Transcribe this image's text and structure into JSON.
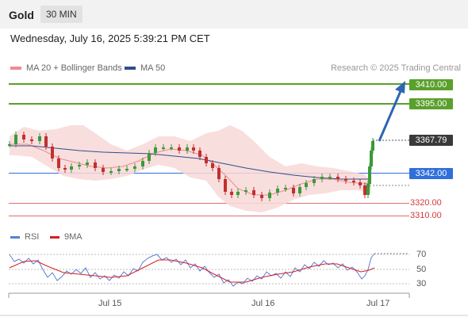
{
  "header": {
    "symbol": "Gold",
    "timeframe": "30 MIN"
  },
  "datetime": "Wednesday, July 16, 2025 5:39:21 PM CET",
  "legend": {
    "bb_label": "MA 20 + Bollinger Bands",
    "bb_color": "#f28b8b",
    "ma50_label": "MA 50",
    "ma50_color": "#2f4f8a",
    "research": "Research © 2025 Trading Central"
  },
  "levels": {
    "r2": "3410.00",
    "r1": "3395.00",
    "last": "3367.79",
    "pivot": "3342.00",
    "s1": "3320.00",
    "s2": "3310.00"
  },
  "colors": {
    "resistance": "#5aa02c",
    "pivot": "#2f6fdc",
    "support": "#d23b3b",
    "last": "#3a3a3a",
    "arrow": "#2d66b3",
    "rsi": "#5b7ed8",
    "rsi_ma": "#d62020"
  },
  "rsi": {
    "label": "RSI",
    "ma_label": "9MA",
    "levels": [
      "70",
      "50",
      "30"
    ]
  },
  "xaxis": [
    "Jul 15",
    "Jul 16",
    "Jul 17"
  ]
}
